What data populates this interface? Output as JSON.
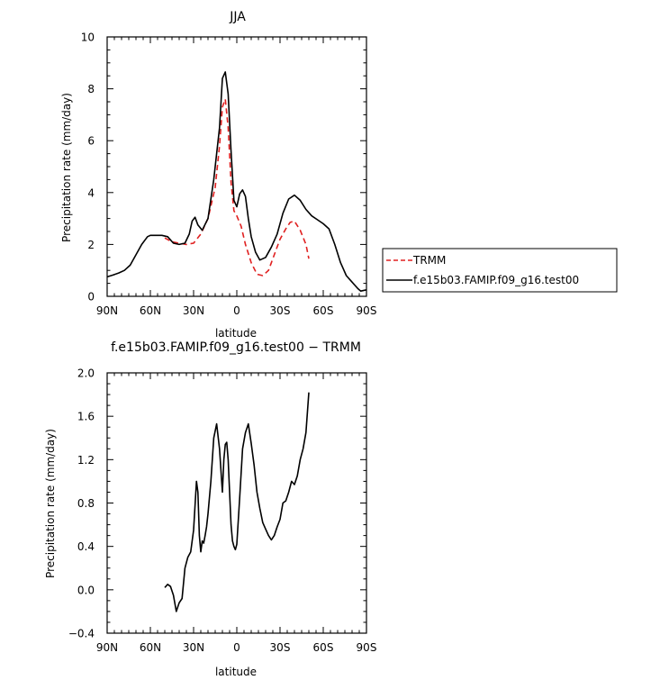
{
  "chart_data": [
    {
      "type": "line",
      "title": "JJA",
      "xlabel": "latitude",
      "ylabel": "Precipitation rate (mm/day)",
      "xticks": [
        "90N",
        "60N",
        "30N",
        "0",
        "30S",
        "60S",
        "90S"
      ],
      "yticks": [
        "0",
        "2",
        "4",
        "6",
        "8",
        "10"
      ],
      "ylim": [
        0,
        10
      ],
      "xlim": [
        90,
        -90
      ],
      "legend": "right",
      "series": [
        {
          "name": "TRMM",
          "color": "#e02020",
          "dash": "dashed",
          "x": [
            50,
            45,
            40,
            35,
            30,
            25,
            20,
            15,
            12,
            10,
            8,
            6,
            4,
            2,
            0,
            -3,
            -6,
            -10,
            -14,
            -18,
            -22,
            -26,
            -30,
            -34,
            -37,
            -40,
            -44,
            -48,
            -50
          ],
          "y": [
            2.25,
            2.1,
            2.05,
            2.0,
            2.05,
            2.4,
            3.0,
            4.2,
            5.8,
            7.3,
            7.6,
            6.5,
            4.4,
            3.3,
            3.1,
            2.7,
            2.0,
            1.3,
            0.85,
            0.8,
            1.0,
            1.6,
            2.2,
            2.6,
            2.85,
            2.9,
            2.55,
            2.0,
            1.45
          ]
        },
        {
          "name": "f.e15b03.FAMIP.f09_g16.test00",
          "color": "#000000",
          "dash": "solid",
          "x": [
            90,
            86,
            82,
            78,
            74,
            70,
            66,
            62,
            60,
            56,
            52,
            48,
            44,
            40,
            36,
            33,
            31,
            29,
            27,
            24,
            20,
            16,
            12,
            10,
            8,
            6,
            4,
            2,
            0,
            -2,
            -4,
            -6,
            -8,
            -10,
            -13,
            -16,
            -20,
            -24,
            -28,
            -32,
            -36,
            -40,
            -44,
            -48,
            -52,
            -56,
            -60,
            -64,
            -68,
            -72,
            -76,
            -80,
            -84,
            -86,
            -90
          ],
          "y": [
            0.75,
            0.82,
            0.9,
            1.0,
            1.2,
            1.6,
            2.0,
            2.3,
            2.35,
            2.35,
            2.35,
            2.3,
            2.05,
            2.0,
            2.05,
            2.4,
            2.9,
            3.05,
            2.75,
            2.55,
            3.0,
            4.5,
            6.5,
            8.4,
            8.65,
            7.8,
            5.6,
            3.7,
            3.45,
            3.95,
            4.1,
            3.85,
            3.0,
            2.3,
            1.7,
            1.4,
            1.5,
            1.9,
            2.4,
            3.2,
            3.75,
            3.9,
            3.7,
            3.35,
            3.1,
            2.95,
            2.8,
            2.6,
            2.0,
            1.3,
            0.8,
            0.55,
            0.3,
            0.2,
            0.25
          ]
        }
      ]
    },
    {
      "type": "line",
      "title": "f.e15b03.FAMIP.f09_g16.test00 − TRMM",
      "xlabel": "latitude",
      "ylabel": "Precipitation rate (mm/day)",
      "xticks": [
        "90N",
        "60N",
        "30N",
        "0",
        "30S",
        "60S",
        "90S"
      ],
      "yticks": [
        "−0.4",
        "0.0",
        "0.4",
        "0.8",
        "1.2",
        "1.6",
        "2.0"
      ],
      "ylim": [
        -0.4,
        2.0
      ],
      "xlim": [
        90,
        -90
      ],
      "series": [
        {
          "name": "",
          "color": "#000000",
          "dash": "solid",
          "x": [
            50,
            48,
            46,
            44,
            42,
            40,
            38,
            36,
            34,
            32,
            30,
            28,
            27,
            26,
            25,
            24,
            23,
            22,
            21,
            20,
            18,
            16,
            14,
            12,
            10,
            9,
            8,
            7,
            6,
            5,
            4,
            3,
            2,
            1,
            0,
            -2,
            -4,
            -6,
            -8,
            -10,
            -12,
            -14,
            -16,
            -18,
            -20,
            -22,
            -24,
            -26,
            -28,
            -30,
            -32,
            -34,
            -36,
            -38,
            -40,
            -42,
            -44,
            -46,
            -48,
            -50
          ],
          "y": [
            0.02,
            0.05,
            0.03,
            -0.05,
            -0.2,
            -0.12,
            -0.08,
            0.2,
            0.3,
            0.35,
            0.55,
            1.0,
            0.9,
            0.5,
            0.35,
            0.45,
            0.43,
            0.5,
            0.58,
            0.7,
            1.0,
            1.4,
            1.53,
            1.3,
            0.9,
            1.2,
            1.34,
            1.36,
            1.2,
            0.9,
            0.6,
            0.45,
            0.4,
            0.37,
            0.42,
            0.85,
            1.3,
            1.45,
            1.53,
            1.35,
            1.15,
            0.9,
            0.75,
            0.62,
            0.56,
            0.5,
            0.46,
            0.5,
            0.58,
            0.65,
            0.8,
            0.82,
            0.9,
            1.0,
            0.97,
            1.05,
            1.2,
            1.3,
            1.45,
            1.82
          ]
        }
      ]
    }
  ]
}
